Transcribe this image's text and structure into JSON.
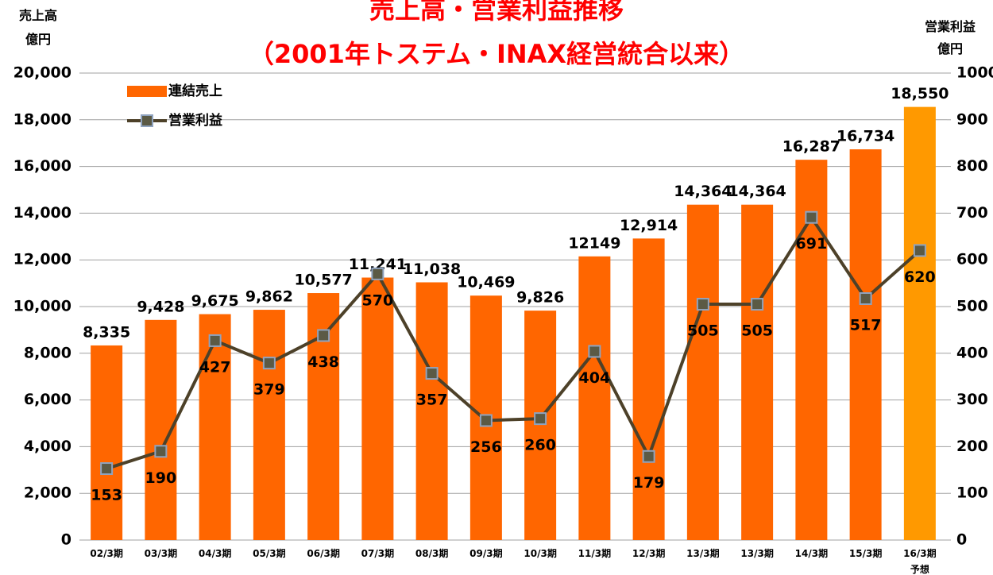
{
  "chart_data": {
    "type": "bar_line",
    "title": "売上高・営業利益推移",
    "subtitle": "（2001年トステム・INAX経営統合以来）",
    "y_label": "売上高\n億円",
    "y2_label": "営業利益\n億円",
    "categories": [
      "02/3期",
      "03/3期",
      "04/3期",
      "05/3期",
      "06/3期",
      "07/3期",
      "08/3期",
      "09/3期",
      "10/3期",
      "11/3期",
      "12/3期",
      "13/3期",
      "13/3期",
      "14/3期",
      "15/3期",
      "16/3期\n予想"
    ],
    "series": [
      {
        "name": "連結売上",
        "type": "bar",
        "color": "#ff6600",
        "colors": [
          "#ff6600",
          "#ff6600",
          "#ff6600",
          "#ff6600",
          "#ff6600",
          "#ff6600",
          "#ff6600",
          "#ff6600",
          "#ff6600",
          "#ff6600",
          "#ff6600",
          "#ff6600",
          "#ff6600",
          "#ff6600",
          "#ff6600",
          "#ff9900"
        ],
        "values": [
          8335,
          9428,
          9675,
          9862,
          10577,
          11241,
          11038,
          10469,
          9826,
          12149,
          12914,
          14364,
          14364,
          16287,
          16734,
          18550
        ],
        "value_labels": [
          "8,335",
          "9,428",
          "9,675",
          "9,862",
          "10,577",
          "11,241",
          "11,038",
          "10,469",
          "9,826",
          "12149",
          "12,914",
          "14,364",
          "14,364",
          "16,287",
          "16,734",
          "18,550"
        ]
      },
      {
        "name": "営業利益",
        "type": "line",
        "axis": "y2",
        "color": "#4d4129",
        "marker_color": "#5b5a45",
        "values": [
          153,
          190,
          427,
          379,
          438,
          570,
          357,
          256,
          260,
          404,
          179,
          505,
          505,
          691,
          517,
          620
        ]
      }
    ],
    "ylim": [
      0,
      20000
    ],
    "yticks": [
      0,
      {
        "value": 2000,
        "label": "2,000"
      },
      {
        "value": 4000,
        "label": "4,000"
      },
      {
        "value": 6000,
        "label": "6,000"
      },
      {
        "value": 8000,
        "label": "8,000"
      },
      {
        "value": 10000,
        "label": "10,000"
      },
      {
        "value": 12000,
        "label": "12,000"
      },
      {
        "value": 14000,
        "label": "14,000"
      },
      {
        "value": 16000,
        "label": "16,000"
      },
      {
        "value": 18000,
        "label": "18,000"
      },
      {
        "value": 20000,
        "label": "20,000"
      }
    ],
    "y2lim": [
      0,
      1000
    ],
    "y2ticks": [
      0,
      100,
      200,
      300,
      400,
      500,
      600,
      700,
      800,
      900,
      1000
    ],
    "grid": true,
    "legend": "top-left"
  }
}
